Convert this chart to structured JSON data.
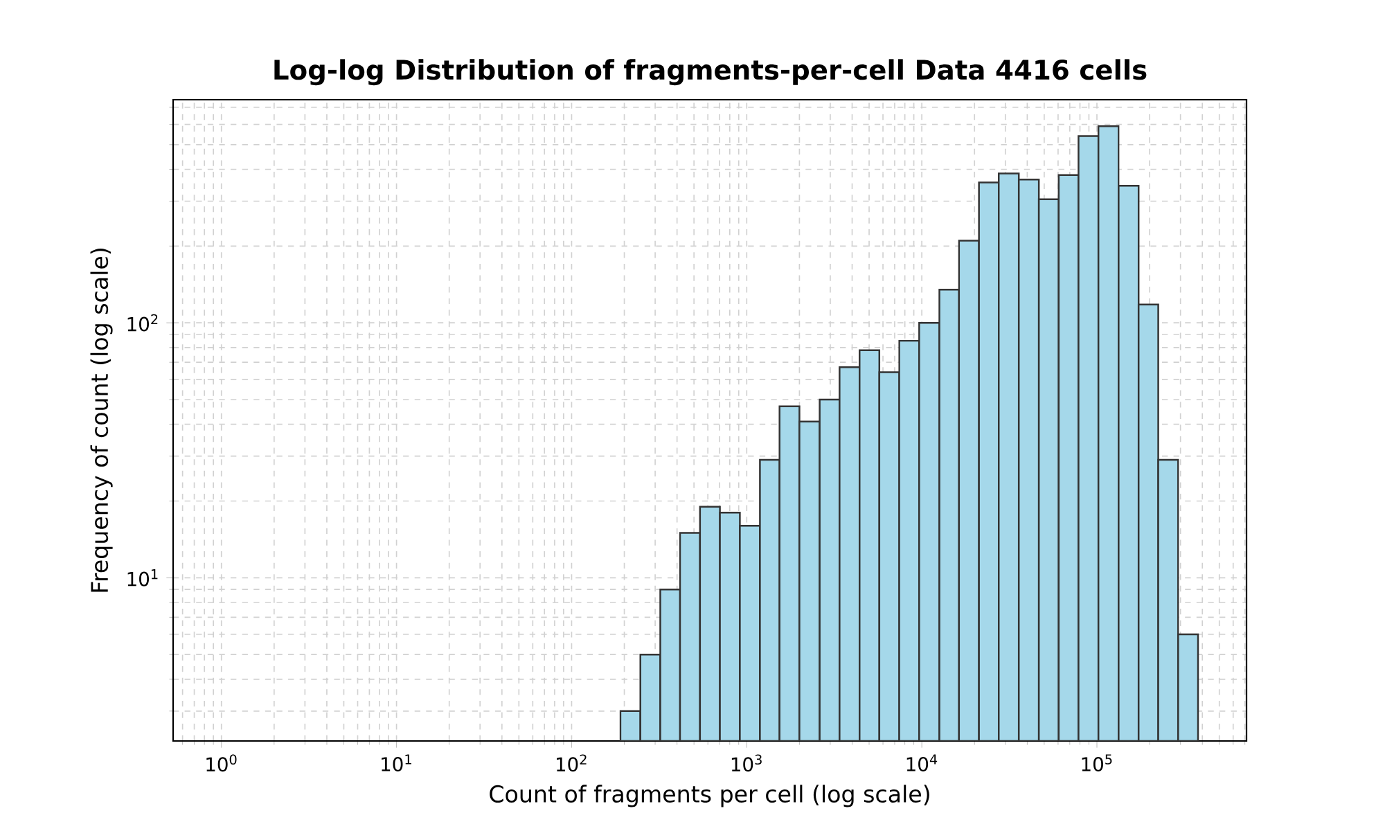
{
  "chart_data": {
    "type": "histogram",
    "title": "Log-log Distribution of fragments-per-cell Data 4416 cells",
    "xlabel": "Count of fragments per cell (log scale)",
    "ylabel": "Frequency of count (log scale)",
    "bins": [
      190,
      247,
      321,
      416,
      541,
      703,
      914,
      1190,
      1540,
      2000,
      2610,
      3390,
      4410,
      5720,
      7430,
      9660,
      12600,
      16300,
      21200,
      27500,
      35800,
      46600,
      60500,
      78500,
      102000,
      133000,
      173000,
      224000,
      291000,
      378000
    ],
    "values": [
      3,
      5,
      9,
      15,
      19,
      18,
      16,
      29,
      47,
      41,
      50,
      67,
      78,
      64,
      85,
      100,
      135,
      210,
      355,
      385,
      365,
      305,
      380,
      540,
      590,
      345,
      118,
      29,
      6
    ],
    "color": "#a5d8ea",
    "log": "xy",
    "grid": true,
    "xlim": [
      0.53,
      715000
    ],
    "ylim": [
      2.29,
      750
    ],
    "xticks": [
      {
        "value": 1,
        "label": "10$^{0}$"
      },
      {
        "value": 10,
        "label": "10$^{1}$"
      },
      {
        "value": 100,
        "label": "10$^{2}$"
      },
      {
        "value": 1000,
        "label": "10$^{3}$"
      },
      {
        "value": 10000,
        "label": "10$^{4}$"
      },
      {
        "value": 100000,
        "label": "10$^{5}$"
      }
    ],
    "yticks": [
      {
        "value": 10,
        "label": "10$^{1}$"
      },
      {
        "value": 100,
        "label": "10$^{2}$"
      }
    ]
  }
}
